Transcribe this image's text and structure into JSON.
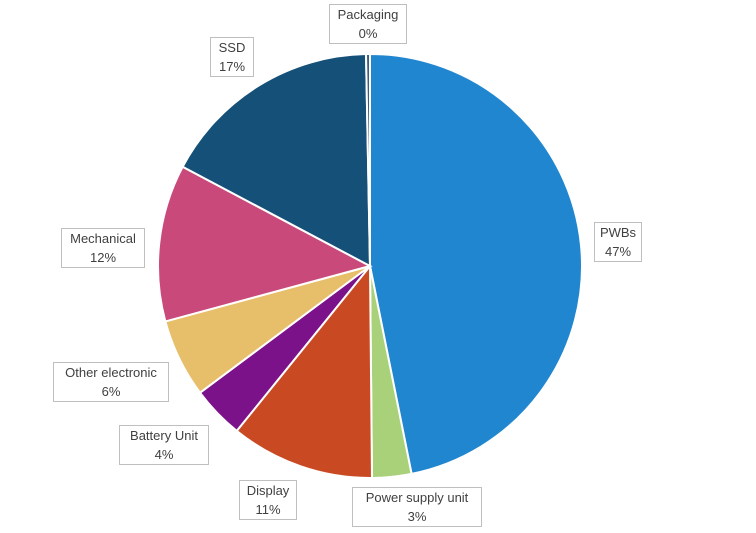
{
  "chart_data": {
    "type": "pie",
    "title": "",
    "slices": [
      {
        "label": "PWBs",
        "percent_label": "47%",
        "value": 47,
        "color": "#1f86cf"
      },
      {
        "label": "Power supply unit",
        "percent_label": "3%",
        "value": 3,
        "color": "#a9d17a"
      },
      {
        "label": "Display",
        "percent_label": "11%",
        "value": 11,
        "color": "#c94a22"
      },
      {
        "label": "Battery Unit",
        "percent_label": "4%",
        "value": 4,
        "color": "#7b128a"
      },
      {
        "label": "Other electronic",
        "percent_label": "6%",
        "value": 6,
        "color": "#e7bf6b"
      },
      {
        "label": "Mechanical",
        "percent_label": "12%",
        "value": 12,
        "color": "#c94a7a"
      },
      {
        "label": "SSD",
        "percent_label": "17%",
        "value": 17,
        "color": "#155079"
      },
      {
        "label": "Packaging",
        "percent_label": "0%",
        "value": 0.3,
        "color": "#3d5a7a"
      }
    ]
  }
}
